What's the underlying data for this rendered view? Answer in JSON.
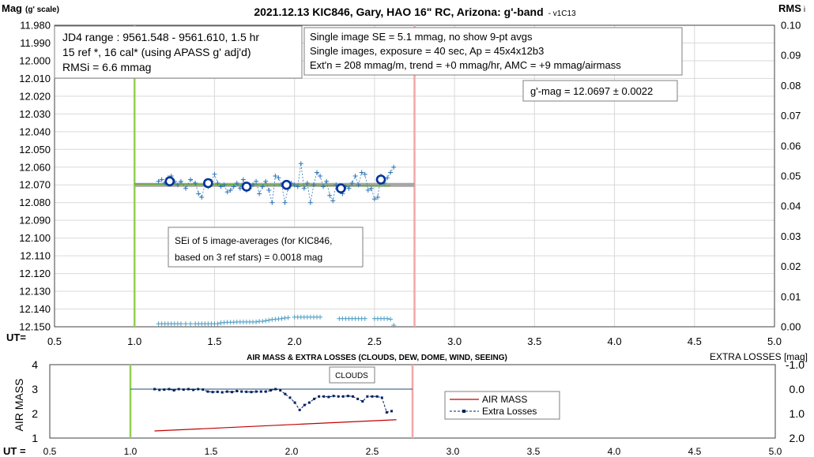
{
  "chart_data": [
    {
      "type": "scatter",
      "title": "2021.12.13 KIC846, Gary, HAO 16\" RC, Arizona: g'-band",
      "title_suffix": "- v1C13",
      "ylabel": "Mag",
      "ylabel_suffix": "(g' scale)",
      "y2label": "RMS",
      "y2label_suffix": "i",
      "xlabel": "UT=",
      "xlim": [
        0.5,
        5.0
      ],
      "ylim": [
        12.15,
        11.98
      ],
      "y2lim": [
        0,
        0.1
      ],
      "x_ticks": [
        "0.5",
        "1.0",
        "1.5",
        "2.0",
        "2.5",
        "3.0",
        "3.5",
        "4.0",
        "4.5",
        "5.0"
      ],
      "y_ticks": [
        "11.980",
        "11.990",
        "12.000",
        "12.010",
        "12.020",
        "12.030",
        "12.040",
        "12.050",
        "12.060",
        "12.070",
        "12.080",
        "12.090",
        "12.100",
        "12.110",
        "12.120",
        "12.130",
        "12.140",
        "12.150"
      ],
      "y2_ticks": [
        "0.10",
        "0.09",
        "0.08",
        "0.07",
        "0.06",
        "0.05",
        "0.04",
        "0.03",
        "0.02",
        "0.01",
        "0.00"
      ],
      "grid": true,
      "vlines": [
        {
          "x": 1.0,
          "color": "#92d050"
        },
        {
          "x": 2.75,
          "color": "#f4a6a6"
        }
      ],
      "avg_line": {
        "x": [
          1.0,
          2.75
        ],
        "y": 12.07,
        "color": "#a6a6a6"
      },
      "trend_line": {
        "x": [
          1.0,
          2.6
        ],
        "y": [
          12.0695,
          12.0705
        ],
        "color": "#70ad47"
      },
      "series": [
        {
          "style": "dashed-plus",
          "color": "#2e75b6",
          "x": [
            1.15,
            1.17,
            1.19,
            1.21,
            1.23,
            1.25,
            1.27,
            1.29,
            1.32,
            1.35,
            1.38,
            1.4,
            1.42,
            1.44,
            1.46,
            1.48,
            1.5,
            1.52,
            1.54,
            1.56,
            1.58,
            1.6,
            1.62,
            1.64,
            1.66,
            1.68,
            1.7,
            1.72,
            1.74,
            1.76,
            1.78,
            1.8,
            1.82,
            1.84,
            1.86,
            1.88,
            1.9,
            1.92,
            1.94,
            1.96,
            1.98,
            2.0,
            2.02,
            2.04,
            2.06,
            2.08,
            2.1,
            2.12,
            2.14,
            2.16,
            2.18,
            2.2,
            2.22,
            2.24,
            2.26,
            2.28,
            2.3,
            2.32,
            2.34,
            2.36,
            2.38,
            2.4,
            2.42,
            2.44,
            2.46,
            2.48,
            2.5,
            2.52,
            2.54,
            2.56,
            2.58,
            2.6,
            2.62
          ],
          "y": [
            12.068,
            12.067,
            12.069,
            12.066,
            12.065,
            12.068,
            12.07,
            12.068,
            12.072,
            12.067,
            12.069,
            12.075,
            12.077,
            12.07,
            12.071,
            12.068,
            12.064,
            12.069,
            12.071,
            12.07,
            12.074,
            12.073,
            12.071,
            12.069,
            12.072,
            12.067,
            12.073,
            12.072,
            12.07,
            12.068,
            12.075,
            12.071,
            12.068,
            12.073,
            12.08,
            12.065,
            12.066,
            12.07,
            12.08,
            12.072,
            12.069,
            12.07,
            12.071,
            12.058,
            12.072,
            12.069,
            12.08,
            12.07,
            12.063,
            12.065,
            12.071,
            12.068,
            12.076,
            12.079,
            12.07,
            12.072,
            12.075,
            12.071,
            12.072,
            12.069,
            12.065,
            12.07,
            12.063,
            12.064,
            12.073,
            12.072,
            12.078,
            12.077,
            12.065,
            12.069,
            12.066,
            12.063,
            12.06
          ]
        },
        {
          "name": "image-averages",
          "style": "open-circle",
          "color": "#003399",
          "x": [
            1.22,
            1.46,
            1.7,
            1.95,
            2.29,
            2.54
          ],
          "y": [
            12.068,
            12.069,
            12.071,
            12.07,
            12.072,
            12.067
          ]
        },
        {
          "name": "RMSi",
          "axis": "y2",
          "style": "plus",
          "color": "#4f9fc4",
          "x": [
            1.15,
            1.17,
            1.19,
            1.21,
            1.23,
            1.25,
            1.27,
            1.29,
            1.32,
            1.35,
            1.38,
            1.4,
            1.42,
            1.44,
            1.46,
            1.48,
            1.5,
            1.52,
            1.54,
            1.56,
            1.58,
            1.6,
            1.62,
            1.64,
            1.66,
            1.68,
            1.7,
            1.72,
            1.74,
            1.76,
            1.78,
            1.8,
            1.82,
            1.84,
            1.86,
            1.88,
            1.9,
            1.92,
            1.94,
            1.96,
            2.0,
            2.02,
            2.04,
            2.06,
            2.08,
            2.1,
            2.12,
            2.14,
            2.16,
            2.28,
            2.3,
            2.32,
            2.34,
            2.36,
            2.38,
            2.4,
            2.42,
            2.44,
            2.5,
            2.52,
            2.54,
            2.56,
            2.58,
            2.6,
            2.62
          ],
          "y": [
            0.001,
            0.001,
            0.001,
            0.001,
            0.001,
            0.001,
            0.001,
            0.001,
            0.001,
            0.001,
            0.001,
            0.001,
            0.001,
            0.001,
            0.001,
            0.001,
            0.001,
            0.001,
            0.0013,
            0.0014,
            0.0015,
            0.0015,
            0.0015,
            0.0016,
            0.0016,
            0.0016,
            0.0016,
            0.0016,
            0.0016,
            0.0016,
            0.0018,
            0.0018,
            0.002,
            0.0022,
            0.0024,
            0.0025,
            0.0026,
            0.0027,
            0.0029,
            0.003,
            0.0032,
            0.0032,
            0.0032,
            0.0032,
            0.0032,
            0.0032,
            0.0032,
            0.0032,
            0.0032,
            0.0027,
            0.0027,
            0.0027,
            0.0027,
            0.0027,
            0.0027,
            0.0027,
            0.0027,
            0.0027,
            0.0027,
            0.0027,
            0.0027,
            0.0027,
            0.0027,
            0.0025,
            0.0005
          ]
        }
      ],
      "annotations": {
        "box1": [
          "JD4 range : 9561.548 - 9561.610,  1.5  hr",
          "15 ref *, 16 cal* (using APASS g' adj'd)",
          "RMSi = 6.6 mmag"
        ],
        "box2": [
          "Single image SE = 5.1 mmag, no show  9-pt avgs",
          "Single images, exposure = 40 sec, Ap = 45x4x12b3",
          "Ext'n = 208 mmag/m, trend = +0 mmag/hr, AMC = +9 mmag/airmass"
        ],
        "gmag": "g'-mag = 12.0697 ± 0.0022",
        "sei": [
          "SEi of 5 image-averages (for KIC846,",
          "based on 3 ref stars) = 0.0018 mag"
        ]
      }
    },
    {
      "type": "line",
      "title": "AIR MASS & EXTRA LOSSES (CLOUDS, DEW, DOME, WIND, SEEING)",
      "ylabel": "AIR MASS",
      "y2label": "EXTRA LOSSES [mag]",
      "xlabel": "UT =",
      "xlim": [
        0.5,
        5.0
      ],
      "ylim": [
        1,
        4
      ],
      "y2lim": [
        2.0,
        -1.0
      ],
      "x_ticks": [
        "0.5",
        "1.0",
        "1.5",
        "2.0",
        "2.5",
        "3.0",
        "3.5",
        "4.0",
        "4.5",
        "5.0"
      ],
      "y_ticks": [
        "4",
        "3",
        "2",
        "1"
      ],
      "y2_ticks": [
        "-1.0",
        "0.0",
        "1.0",
        "2.0"
      ],
      "vlines": [
        {
          "x": 1.0,
          "color": "#92d050"
        },
        {
          "x": 2.75,
          "color": "#f4a6a6"
        }
      ],
      "ref_line": {
        "x": [
          1.0,
          2.75
        ],
        "y2": 0.0,
        "color": "#1f4e79"
      },
      "clouds_label": "CLOUDS",
      "legend_position": "right",
      "series": [
        {
          "name": "AIR MASS",
          "axis": "y",
          "color": "#c00000",
          "style": "solid",
          "x": [
            1.15,
            2.65
          ],
          "y": [
            1.29,
            1.75
          ]
        },
        {
          "name": "Extra Losses",
          "axis": "y2",
          "color": "#002060",
          "style": "dashed-dot",
          "x": [
            1.15,
            1.18,
            1.21,
            1.24,
            1.27,
            1.3,
            1.33,
            1.36,
            1.39,
            1.42,
            1.45,
            1.48,
            1.51,
            1.54,
            1.57,
            1.6,
            1.63,
            1.66,
            1.69,
            1.72,
            1.75,
            1.78,
            1.81,
            1.84,
            1.87,
            1.9,
            1.93,
            1.96,
            1.99,
            2.02,
            2.05,
            2.08,
            2.11,
            2.14,
            2.17,
            2.2,
            2.23,
            2.26,
            2.29,
            2.32,
            2.35,
            2.38,
            2.41,
            2.44,
            2.47,
            2.5,
            2.53,
            2.56,
            2.59,
            2.62
          ],
          "y": [
            0.0,
            0.03,
            0.02,
            0.0,
            0.05,
            0.0,
            0.02,
            0.0,
            0.03,
            0.0,
            0.02,
            0.1,
            0.12,
            0.11,
            0.13,
            0.1,
            0.12,
            0.08,
            0.1,
            0.11,
            0.12,
            0.1,
            0.1,
            0.1,
            0.05,
            0.0,
            0.05,
            0.2,
            0.35,
            0.55,
            0.85,
            0.65,
            0.55,
            0.4,
            0.3,
            0.3,
            0.32,
            0.28,
            0.3,
            0.3,
            0.28,
            0.3,
            0.4,
            0.5,
            0.3,
            0.3,
            0.3,
            0.35,
            0.95,
            0.9
          ]
        }
      ]
    }
  ]
}
